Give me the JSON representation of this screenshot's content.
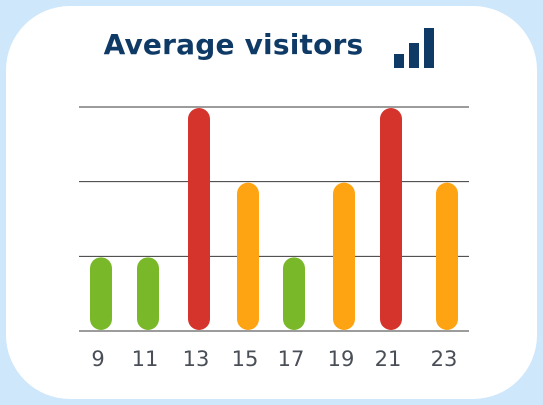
{
  "chart_data": {
    "type": "bar",
    "title": "Average visitors",
    "categories": [
      "9",
      "11",
      "13",
      "15",
      "17",
      "19",
      "21",
      "23"
    ],
    "values": [
      1,
      1,
      3,
      2,
      1,
      2,
      3,
      2
    ],
    "colors": [
      "#79b829",
      "#79b829",
      "#d4342b",
      "#fea412",
      "#79b829",
      "#fea412",
      "#d4342b",
      "#fea412"
    ],
    "ylim": [
      0,
      3
    ],
    "grid": true,
    "legend": "none"
  },
  "header": {
    "icon": "bar-chart-icon",
    "icon_color": "#0f3a66"
  },
  "colors": {
    "background": "#cfe7fb",
    "card": "#ffffff",
    "title": "#0f3a66",
    "axis_label": "#4a4f57",
    "gridline": "#3a3a3a"
  }
}
